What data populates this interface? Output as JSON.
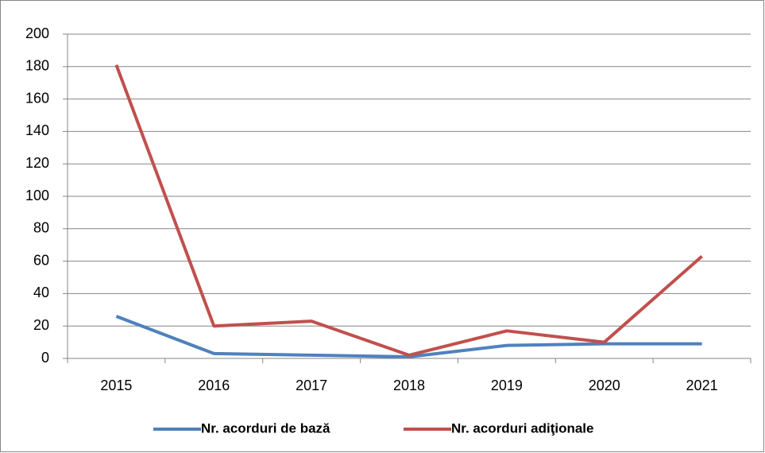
{
  "chart_data": {
    "type": "line",
    "categories": [
      "2015",
      "2016",
      "2017",
      "2018",
      "2019",
      "2020",
      "2021"
    ],
    "series": [
      {
        "name": "Nr. acorduri de bază",
        "color": "#4f81bd",
        "values": [
          26,
          3,
          2,
          1,
          8,
          9,
          9
        ]
      },
      {
        "name": "Nr. acorduri adiţionale",
        "color": "#c0504d",
        "values": [
          181,
          20,
          23,
          2,
          17,
          10,
          63
        ]
      }
    ],
    "ylim": [
      0,
      200
    ],
    "yticks": [
      0,
      20,
      40,
      60,
      80,
      100,
      120,
      140,
      160,
      180,
      200
    ],
    "grid": true,
    "legend": "bottom"
  }
}
